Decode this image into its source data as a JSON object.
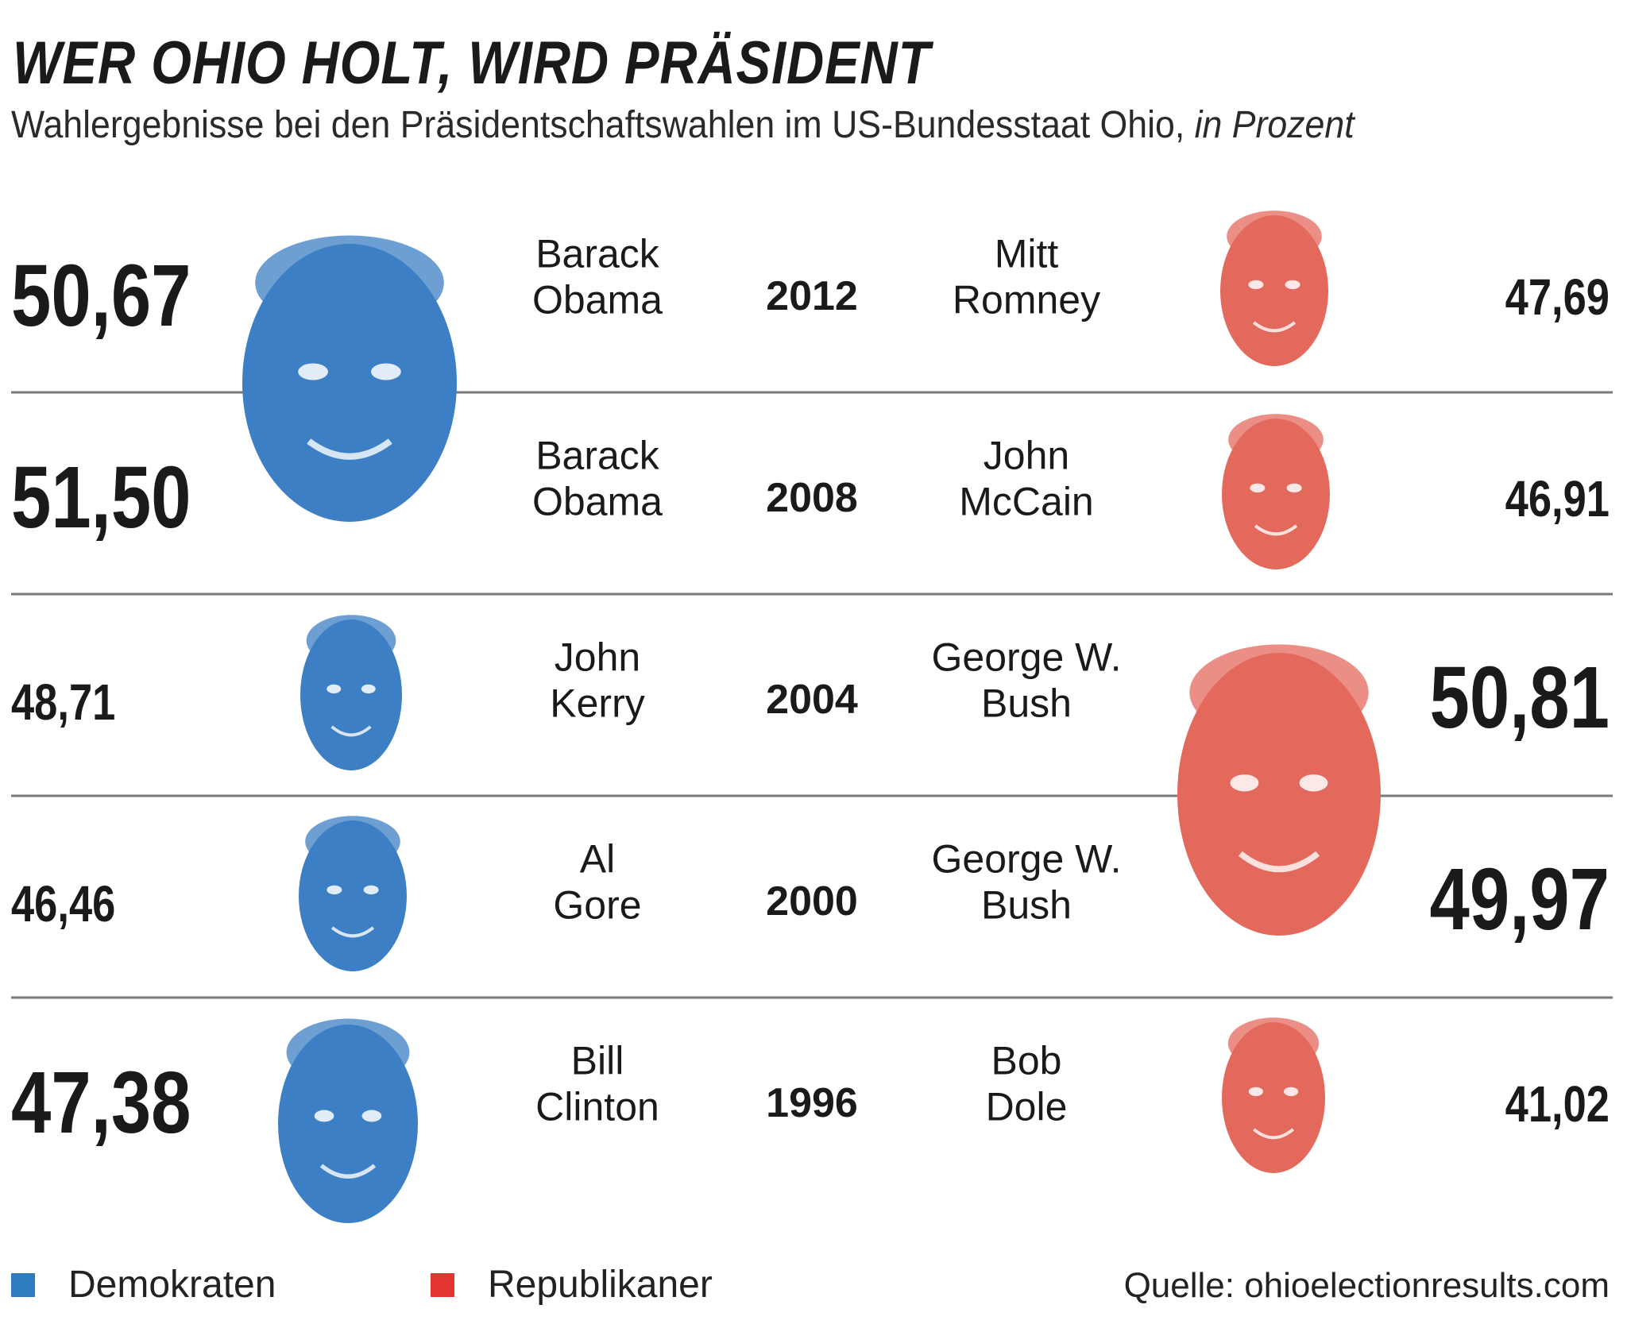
{
  "header": {
    "title": "WER OHIO HOLT, WIRD PRÄSIDENT",
    "subtitle": "Wahlergebnisse bei den Präsidentschaftswahlen im US-Bundesstaat Ohio,",
    "subtitle_unit": "in Prozent"
  },
  "legend": {
    "dem_label": "Demokraten",
    "rep_label": "Republikaner"
  },
  "source": "Quelle: ohioelectionresults.com",
  "colors": {
    "democrat": "#2f7bc2",
    "republican": "#e3342f",
    "dem_face": "#3d7fc4",
    "rep_face": "#e4695d",
    "divider": "#7a7a7a",
    "text": "#1a1a1a"
  },
  "chart_data": {
    "type": "table",
    "title": "WER OHIO HOLT, WIRD PRÄSIDENT",
    "rows": [
      {
        "year": "2012",
        "dem_name_line1": "Barack",
        "dem_name_line2": "Obama",
        "dem_value": "50,67",
        "dem_value_num": 50.67,
        "rep_name_line1": "Mitt",
        "rep_name_line2": "Romney",
        "rep_value": "47,69",
        "rep_value_num": 47.69
      },
      {
        "year": "2008",
        "dem_name_line1": "Barack",
        "dem_name_line2": "Obama",
        "dem_value": "51,50",
        "dem_value_num": 51.5,
        "rep_name_line1": "John",
        "rep_name_line2": "McCain",
        "rep_value": "46,91",
        "rep_value_num": 46.91
      },
      {
        "year": "2004",
        "dem_name_line1": "John",
        "dem_name_line2": "Kerry",
        "dem_value": "48,71",
        "dem_value_num": 48.71,
        "rep_name_line1": "George W.",
        "rep_name_line2": "Bush",
        "rep_value": "50,81",
        "rep_value_num": 50.81
      },
      {
        "year": "2000",
        "dem_name_line1": "Al",
        "dem_name_line2": "Gore",
        "dem_value": "46,46",
        "dem_value_num": 46.46,
        "rep_name_line1": "George W.",
        "rep_name_line2": "Bush",
        "rep_value": "49,97",
        "rep_value_num": 49.97
      },
      {
        "year": "1996",
        "dem_name_line1": "Bill",
        "dem_name_line2": "Clinton",
        "dem_value": "47,38",
        "dem_value_num": 47.38,
        "rep_name_line1": "Bob",
        "rep_name_line2": "Dole",
        "rep_value": "41,02",
        "rep_value_num": 41.02
      }
    ]
  }
}
